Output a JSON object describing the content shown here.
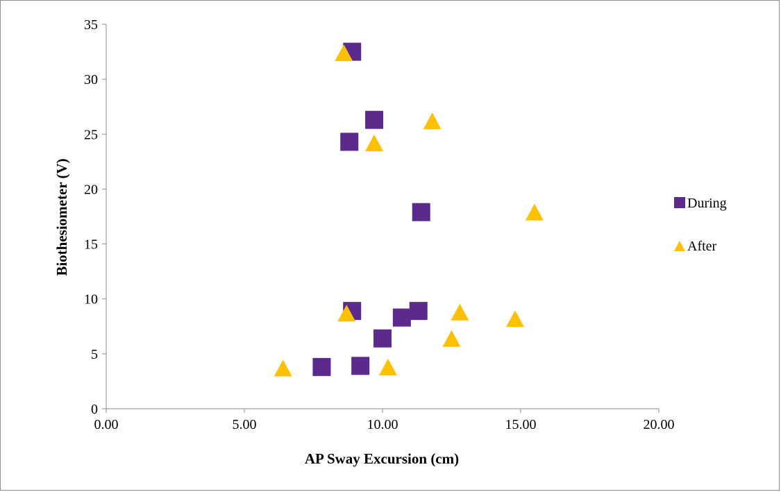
{
  "chart_data": {
    "type": "scatter",
    "title": "",
    "xlabel": "AP Sway Excursion (cm)",
    "ylabel": "Biothesiometer (V)",
    "xlim": [
      0,
      20
    ],
    "ylim": [
      0,
      35
    ],
    "x_ticks": [
      "0.00",
      "5.00",
      "10.00",
      "15.00",
      "20.00"
    ],
    "y_ticks": [
      "0",
      "5",
      "10",
      "15",
      "20",
      "25",
      "30",
      "35"
    ],
    "grid": false,
    "legend_position": "right",
    "series": [
      {
        "name": "During",
        "marker": "square",
        "color": "#5b2a8c",
        "points": [
          {
            "x": 8.9,
            "y": 32.5
          },
          {
            "x": 9.7,
            "y": 26.3
          },
          {
            "x": 8.8,
            "y": 24.3
          },
          {
            "x": 11.4,
            "y": 17.9
          },
          {
            "x": 8.9,
            "y": 8.9
          },
          {
            "x": 11.3,
            "y": 8.9
          },
          {
            "x": 10.7,
            "y": 8.3
          },
          {
            "x": 10.0,
            "y": 6.4
          },
          {
            "x": 9.2,
            "y": 3.9
          },
          {
            "x": 7.8,
            "y": 3.8
          }
        ]
      },
      {
        "name": "After",
        "marker": "triangle",
        "color": "#ffc000",
        "points": [
          {
            "x": 8.6,
            "y": 32.4
          },
          {
            "x": 11.8,
            "y": 26.2
          },
          {
            "x": 9.7,
            "y": 24.2
          },
          {
            "x": 15.5,
            "y": 17.9
          },
          {
            "x": 8.7,
            "y": 8.7
          },
          {
            "x": 12.8,
            "y": 8.8
          },
          {
            "x": 14.8,
            "y": 8.2
          },
          {
            "x": 12.5,
            "y": 6.4
          },
          {
            "x": 10.2,
            "y": 3.8
          },
          {
            "x": 6.4,
            "y": 3.7
          }
        ]
      }
    ]
  }
}
